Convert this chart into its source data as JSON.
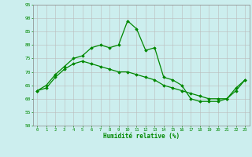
{
  "x": [
    0,
    1,
    2,
    3,
    4,
    5,
    6,
    7,
    8,
    9,
    10,
    11,
    12,
    13,
    14,
    15,
    16,
    17,
    18,
    19,
    20,
    21,
    22,
    23
  ],
  "line1": [
    63,
    65,
    69,
    72,
    75,
    76,
    79,
    80,
    79,
    80,
    89,
    86,
    78,
    79,
    68,
    67,
    65,
    60,
    59,
    59,
    59,
    60,
    64,
    67
  ],
  "line2": [
    63,
    64,
    68,
    71,
    73,
    74,
    73,
    72,
    71,
    70,
    70,
    69,
    68,
    67,
    65,
    64,
    63,
    62,
    61,
    60,
    60,
    60,
    63,
    67
  ],
  "xlabel": "Humidité relative (%)",
  "xlim": [
    -0.5,
    23.5
  ],
  "ylim": [
    50,
    95
  ],
  "yticks": [
    50,
    55,
    60,
    65,
    70,
    75,
    80,
    85,
    90,
    95
  ],
  "xticks": [
    0,
    1,
    2,
    3,
    4,
    5,
    6,
    7,
    8,
    9,
    10,
    11,
    12,
    13,
    14,
    15,
    16,
    17,
    18,
    19,
    20,
    21,
    22,
    23
  ],
  "line_color": "#008800",
  "bg_color": "#cceeee",
  "grid_color": "#bbbbbb",
  "marker": "D",
  "marker_size": 1.8,
  "line_width": 0.9
}
